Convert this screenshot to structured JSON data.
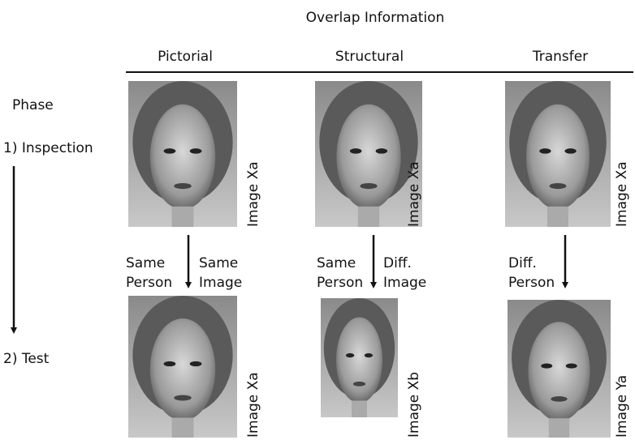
{
  "title": "Overlap Information",
  "phase_heading": "Phase",
  "phases": [
    "1) Inspection",
    "2) Test"
  ],
  "columns": [
    {
      "header": "Pictorial",
      "top_label": "Image Xa",
      "left_note": [
        "Same",
        "Person"
      ],
      "right_note": [
        "Same",
        "Image"
      ],
      "bottom_label": "Image Xa"
    },
    {
      "header": "Structural",
      "top_label": "Image Xa",
      "left_note": [
        "Same",
        "Person"
      ],
      "right_note": [
        "Diff.",
        "Image"
      ],
      "bottom_label": "Image Xb"
    },
    {
      "header": "Transfer",
      "top_label": "Image Xa",
      "left_note": [
        "Diff.",
        "Person"
      ],
      "bottom_label": "Image Ya"
    }
  ]
}
